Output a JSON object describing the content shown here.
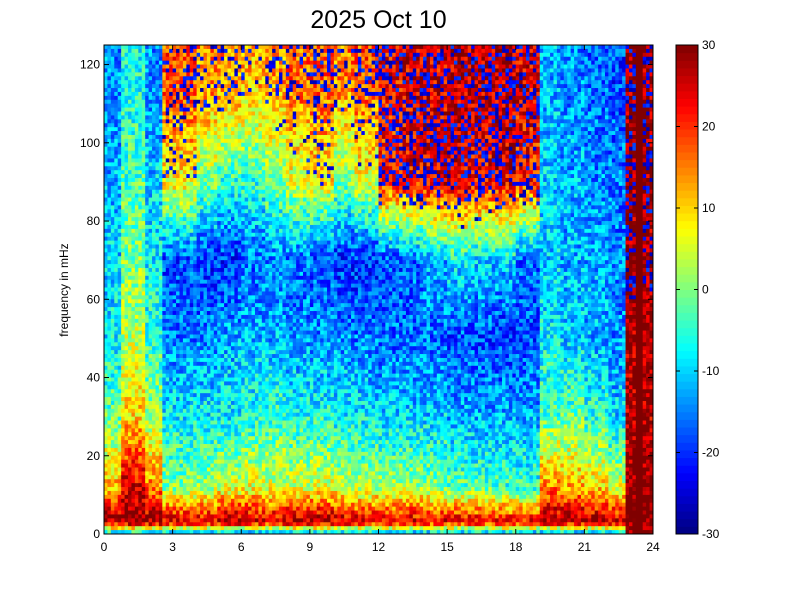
{
  "chart_data": {
    "type": "heatmap",
    "title": "2025 Oct 10",
    "xlabel": "",
    "ylabel": "frequency in mHz",
    "xlim": [
      0,
      24
    ],
    "ylim": [
      0,
      125
    ],
    "xticks": [
      "0",
      "3",
      "6",
      "9",
      "12",
      "15",
      "18",
      "21",
      "24"
    ],
    "yticks": [
      "0",
      "20",
      "40",
      "60",
      "80",
      "100",
      "120"
    ],
    "colormap": "jet",
    "clim": [
      -30,
      30
    ],
    "colorbar_ticks": [
      "-30",
      "-20",
      "-10",
      "0",
      "10",
      "20",
      "30"
    ],
    "colorbar_position": "right",
    "grid": false,
    "time_bin_edges": [
      0,
      0.8,
      1.8,
      2.5,
      4,
      5,
      6,
      7,
      8,
      9,
      10,
      11,
      12,
      13,
      14,
      15,
      16,
      17,
      18,
      19,
      20,
      21,
      22,
      22.8,
      24
    ],
    "frequency_band_centers": [
      115,
      90,
      70,
      50,
      30,
      12,
      3,
      0.5
    ],
    "approximate_values": [
      [
        -14,
        -6,
        -14,
        18,
        15,
        14,
        12,
        14,
        16,
        18,
        15,
        18,
        22,
        24,
        24,
        26,
        26,
        26,
        24,
        -12,
        -14,
        -16,
        -18,
        28
      ],
      [
        -12,
        -3,
        -10,
        8,
        0,
        -5,
        -5,
        0,
        5,
        8,
        0,
        5,
        20,
        22,
        24,
        24,
        22,
        24,
        20,
        -10,
        -12,
        -14,
        -15,
        28
      ],
      [
        -10,
        0,
        -8,
        -18,
        -20,
        -20,
        -16,
        -15,
        -16,
        -18,
        -20,
        -20,
        -18,
        -16,
        -12,
        -8,
        -10,
        -10,
        -16,
        -10,
        -12,
        -12,
        -15,
        28
      ],
      [
        -8,
        3,
        -5,
        -15,
        -14,
        -12,
        -12,
        -12,
        -14,
        -14,
        -14,
        -15,
        -16,
        -16,
        -16,
        -18,
        -18,
        -20,
        -18,
        -8,
        -10,
        -12,
        -14,
        28
      ],
      [
        -2,
        10,
        2,
        -8,
        -8,
        -8,
        -6,
        -4,
        -6,
        -6,
        -8,
        -8,
        -10,
        -10,
        -10,
        -12,
        -12,
        -12,
        -12,
        -3,
        -2,
        -5,
        -10,
        26
      ],
      [
        12,
        25,
        15,
        0,
        2,
        5,
        6,
        5,
        5,
        5,
        4,
        2,
        2,
        2,
        0,
        -2,
        -3,
        -4,
        -5,
        15,
        12,
        10,
        5,
        30
      ],
      [
        28,
        30,
        28,
        25,
        25,
        28,
        26,
        25,
        28,
        28,
        26,
        25,
        25,
        25,
        24,
        24,
        24,
        23,
        23,
        28,
        28,
        28,
        26,
        30
      ],
      [
        -5,
        -5,
        -5,
        -8,
        -8,
        -8,
        -8,
        -8,
        -8,
        -8,
        -8,
        -8,
        -8,
        -8,
        -8,
        -8,
        -8,
        -8,
        -8,
        -8,
        -8,
        -8,
        -8,
        30
      ]
    ]
  }
}
